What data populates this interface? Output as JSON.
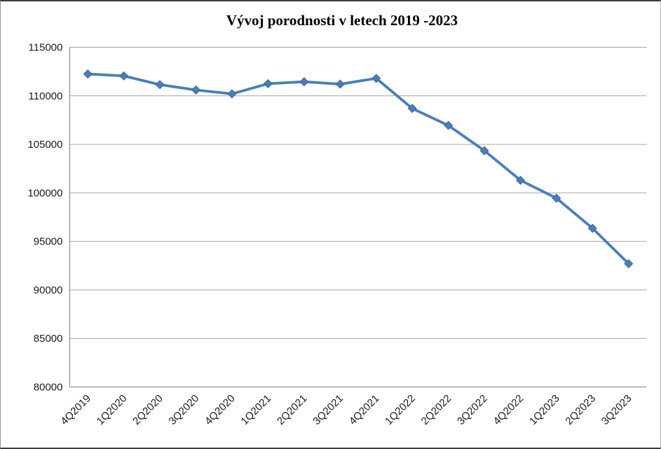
{
  "chart_data": {
    "type": "line",
    "title": "Vývoj porodnosti v letech 2019 -2023",
    "categories": [
      "4Q2019",
      "1Q2020",
      "2Q2020",
      "3Q2020",
      "4Q2020",
      "1Q2021",
      "2Q2021",
      "3Q2021",
      "4Q2021",
      "1Q2022",
      "2Q2022",
      "3Q2022",
      "4Q2022",
      "1Q2023",
      "2Q2023",
      "3Q2023"
    ],
    "values": [
      112250,
      112050,
      111150,
      110600,
      110200,
      111250,
      111450,
      111200,
      111800,
      108700,
      106950,
      104350,
      101300,
      99450,
      96350,
      92700
    ],
    "xlabel": "",
    "ylabel": "",
    "ylim": [
      80000,
      115000
    ],
    "ytick_step": 5000,
    "ytick_labels": [
      "80000",
      "85000",
      "90000",
      "95000",
      "100000",
      "105000",
      "110000",
      "115000"
    ],
    "grid": true,
    "legend": false,
    "marker": "diamond",
    "colors": {
      "line": "#4a7ebb",
      "marker_fill": "#4a7ebb",
      "marker_edge": "#38639a",
      "gridline": "#a6a6a6",
      "axis": "#808080",
      "tick_text": "#1a1a1a",
      "title_text": "#000000"
    }
  }
}
